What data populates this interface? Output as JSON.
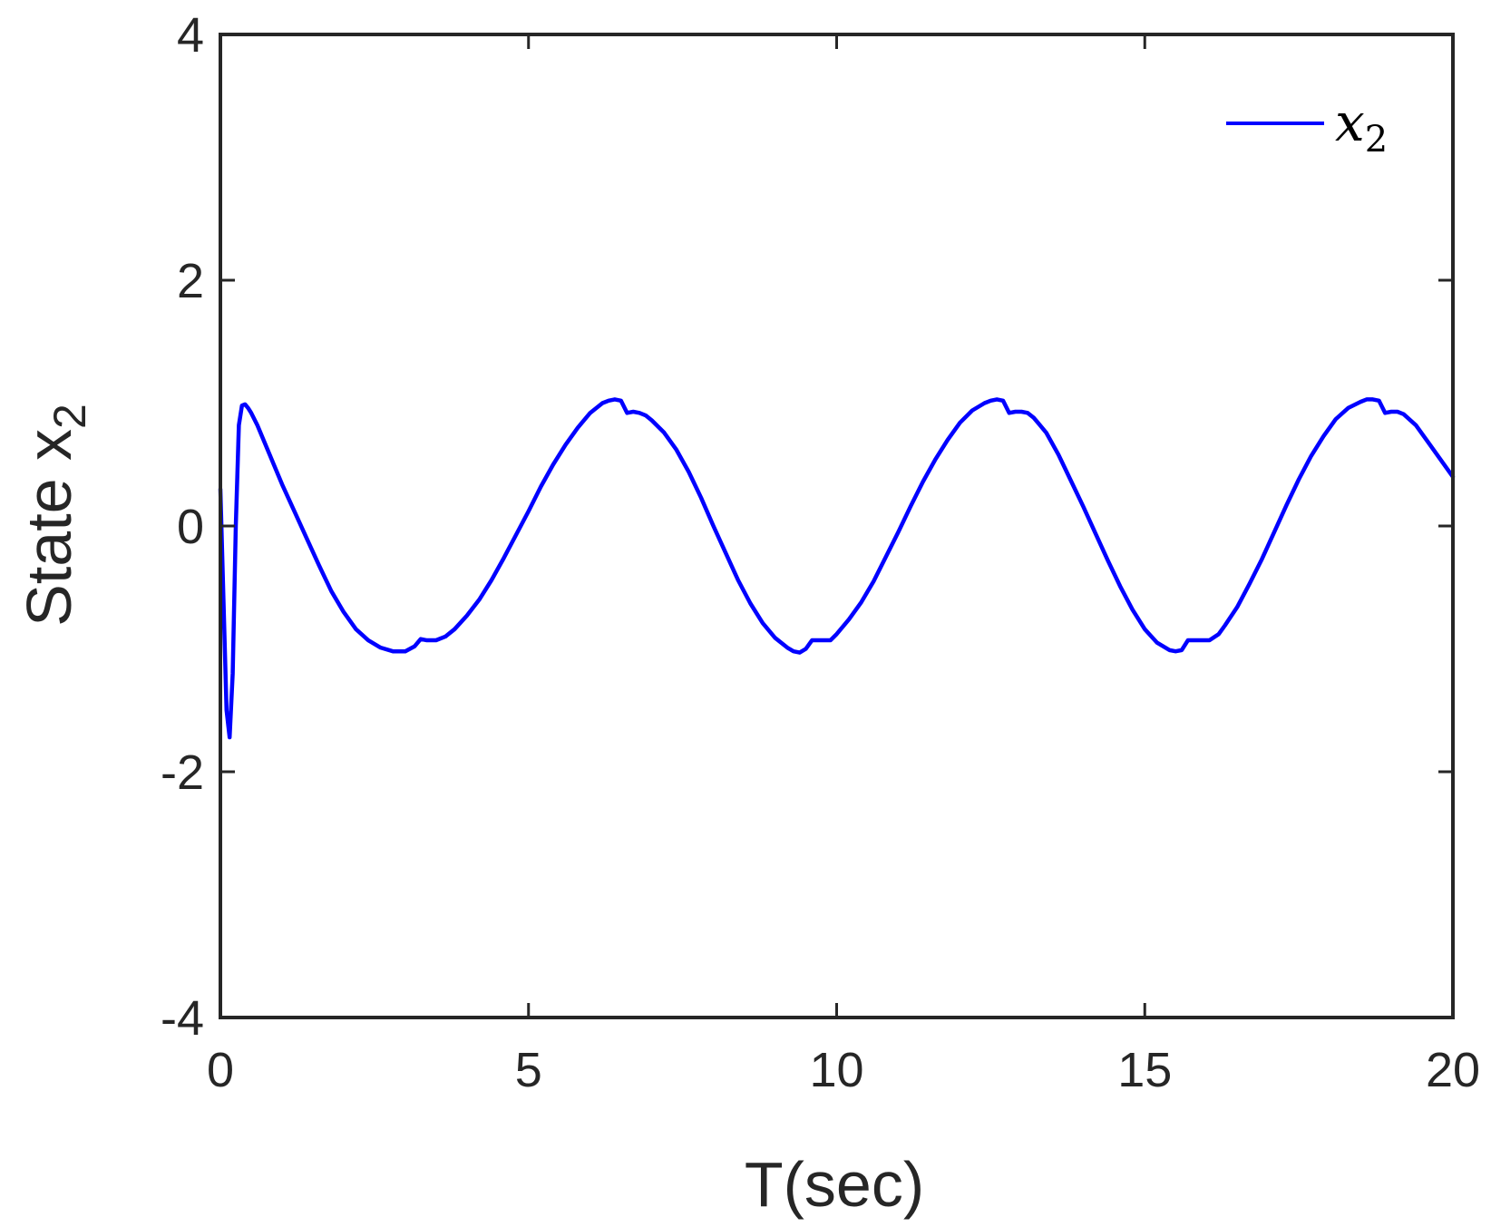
{
  "chart_data": {
    "type": "line",
    "title": "",
    "xlabel": "T(sec)",
    "ylabel": {
      "base": "State x",
      "subscript": "2"
    },
    "xlim": [
      0,
      20
    ],
    "ylim": [
      -4,
      4
    ],
    "xticks": [
      0,
      5,
      10,
      15,
      20
    ],
    "xtick_labels": [
      "0",
      "5",
      "10",
      "15",
      "20"
    ],
    "yticks": [
      -4,
      -2,
      0,
      2,
      4
    ],
    "ytick_labels": [
      "-4",
      "-2",
      "0",
      "2",
      "4"
    ],
    "grid": false,
    "legend": {
      "placement": "top-right",
      "entries": [
        {
          "base": "x",
          "subscript": "2"
        }
      ]
    },
    "series": [
      {
        "color": "#0000ff",
        "x": [
          0.0,
          0.05,
          0.1,
          0.15,
          0.2,
          0.25,
          0.3,
          0.35,
          0.4,
          0.45,
          0.5,
          0.6,
          0.8,
          1.0,
          1.2,
          1.4,
          1.6,
          1.8,
          2.0,
          2.2,
          2.4,
          2.6,
          2.8,
          3.0,
          3.15,
          3.25,
          3.35,
          3.5,
          3.65,
          3.8,
          4.0,
          4.2,
          4.4,
          4.6,
          4.8,
          5.0,
          5.2,
          5.4,
          5.6,
          5.8,
          6.0,
          6.2,
          6.3,
          6.4,
          6.5,
          6.6,
          6.7,
          6.8,
          6.9,
          7.0,
          7.2,
          7.4,
          7.6,
          7.8,
          8.0,
          8.2,
          8.4,
          8.6,
          8.8,
          9.0,
          9.2,
          9.3,
          9.4,
          9.5,
          9.6,
          9.75,
          9.9,
          10.0,
          10.2,
          10.4,
          10.6,
          10.8,
          11.0,
          11.2,
          11.4,
          11.6,
          11.8,
          12.0,
          12.2,
          12.4,
          12.5,
          12.6,
          12.7,
          12.8,
          12.9,
          13.0,
          13.1,
          13.2,
          13.4,
          13.6,
          13.8,
          14.0,
          14.2,
          14.4,
          14.6,
          14.8,
          15.0,
          15.2,
          15.4,
          15.5,
          15.6,
          15.7,
          15.8,
          15.9,
          16.05,
          16.2,
          16.3,
          16.5,
          16.7,
          16.9,
          17.1,
          17.3,
          17.5,
          17.7,
          17.9,
          18.1,
          18.3,
          18.5,
          18.6,
          18.7,
          18.8,
          18.9,
          19.0,
          19.1,
          19.2,
          19.4,
          19.6,
          19.8,
          20.0
        ],
        "y": [
          0.3,
          -0.6,
          -1.5,
          -1.72,
          -1.2,
          0.0,
          0.82,
          0.98,
          0.99,
          0.96,
          0.92,
          0.82,
          0.58,
          0.34,
          0.12,
          -0.1,
          -0.32,
          -0.53,
          -0.7,
          -0.84,
          -0.93,
          -0.99,
          -1.02,
          -1.02,
          -0.98,
          -0.92,
          -0.93,
          -0.93,
          -0.9,
          -0.84,
          -0.73,
          -0.6,
          -0.44,
          -0.26,
          -0.07,
          0.12,
          0.32,
          0.5,
          0.66,
          0.8,
          0.92,
          1.0,
          1.02,
          1.03,
          1.02,
          0.92,
          0.93,
          0.92,
          0.9,
          0.86,
          0.76,
          0.62,
          0.44,
          0.23,
          0.0,
          -0.22,
          -0.44,
          -0.63,
          -0.79,
          -0.91,
          -0.99,
          -1.02,
          -1.03,
          -1.0,
          -0.93,
          -0.93,
          -0.93,
          -0.88,
          -0.76,
          -0.62,
          -0.45,
          -0.25,
          -0.05,
          0.16,
          0.36,
          0.54,
          0.7,
          0.84,
          0.94,
          1.0,
          1.02,
          1.03,
          1.02,
          0.92,
          0.93,
          0.93,
          0.92,
          0.88,
          0.76,
          0.58,
          0.37,
          0.16,
          -0.06,
          -0.28,
          -0.49,
          -0.68,
          -0.84,
          -0.95,
          -1.01,
          -1.02,
          -1.01,
          -0.93,
          -0.93,
          -0.93,
          -0.93,
          -0.88,
          -0.81,
          -0.66,
          -0.47,
          -0.27,
          -0.05,
          0.17,
          0.38,
          0.57,
          0.73,
          0.87,
          0.96,
          1.01,
          1.03,
          1.03,
          1.02,
          0.92,
          0.93,
          0.93,
          0.91,
          0.82,
          0.68,
          0.54,
          0.4
        ]
      }
    ]
  }
}
